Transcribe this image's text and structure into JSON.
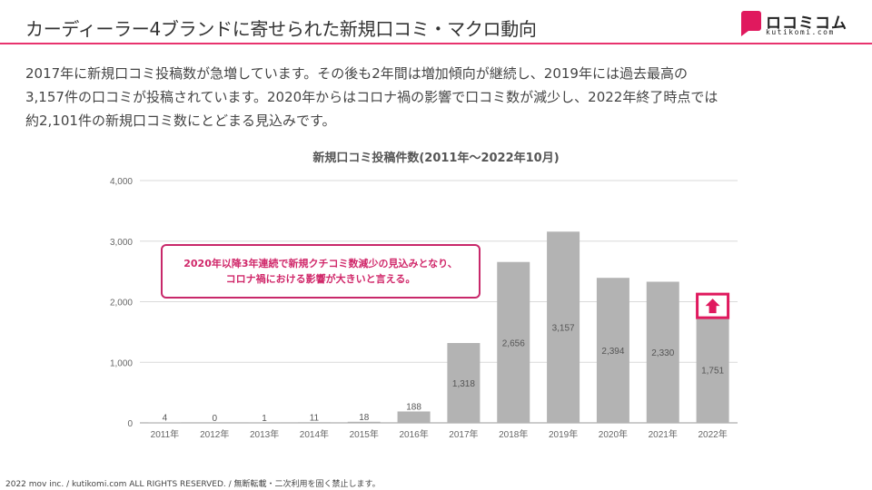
{
  "header": {
    "title": "カーディーラー4ブランドに寄せられた新規口コミ・マクロ動向",
    "logo_text": "ロコミコム",
    "logo_subtext": "kutikomi.com"
  },
  "intro": {
    "lines": [
      "2017年に新規口コミ投稿数が急増しています。その後も2年間は増加傾向が継続し、2019年には過去最高の",
      "3,157件の口コミが投稿されています。2020年からはコロナ禍の影響で口コミ数が減少し、2022年終了時点では",
      "約2,101件の新規口コミ数にとどまる見込みです。"
    ]
  },
  "chart_data": {
    "type": "bar",
    "title": "新規口コミ投稿件数(2011年〜2022年10月)",
    "categories": [
      "2011年",
      "2012年",
      "2013年",
      "2014年",
      "2015年",
      "2016年",
      "2017年",
      "2018年",
      "2019年",
      "2020年",
      "2021年",
      "2022年"
    ],
    "values": [
      4,
      0,
      1,
      11,
      18,
      188,
      1318,
      2656,
      3157,
      2394,
      2330,
      1751
    ],
    "value_labels": [
      "4",
      "0",
      "1",
      "11",
      "18",
      "188",
      "1,318",
      "2,656",
      "3,157",
      "2,394",
      "2,330",
      "1,751"
    ],
    "ylim": [
      0,
      4000
    ],
    "yticks": [
      0,
      1000,
      2000,
      3000,
      4000
    ],
    "ytick_labels": [
      "0",
      "1,000",
      "2,000",
      "3,000",
      "4,000"
    ],
    "grid": true,
    "bar_color": "#b3b3b3",
    "grid_color": "#d9d9d9",
    "highlight_index": 11,
    "highlight_icon": "arrow-up-icon",
    "highlight_color": "#e0195e"
  },
  "callout": {
    "lines": [
      "2020年以降3年連続で新規クチコミ数減少の見込みとなり、",
      "コロナ禍における影響が大きいと言える。"
    ],
    "border_color": "#c8286a"
  },
  "footer": {
    "text": "2022 mov inc. / kutikomi.com ALL RIGHTS RESERVED. / 無断転載・二次利用を固く禁止します。"
  },
  "colors": {
    "accent": "#e8336e",
    "brand": "#e0195e"
  }
}
